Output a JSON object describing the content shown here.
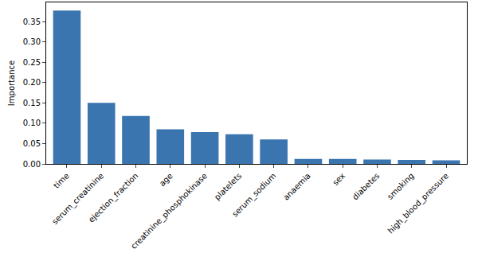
{
  "chart_data": {
    "type": "bar",
    "y_label": "Importance",
    "categories": [
      "time",
      "serum_creatinine",
      "ejection_fraction",
      "age",
      "creatinine_phosphokinase",
      "platelets",
      "serum_sodium",
      "anaemia",
      "sex",
      "diabetes",
      "smoking",
      "high_blood_pressure"
    ],
    "values": [
      0.377,
      0.15,
      0.118,
      0.085,
      0.078,
      0.073,
      0.06,
      0.012,
      0.012,
      0.011,
      0.01,
      0.009
    ],
    "color": "#3a75b0",
    "ylim": [
      0,
      0.397
    ],
    "yticks": [
      {
        "value": 0,
        "label": "0.00"
      },
      {
        "value": 0.05,
        "label": "0.05"
      },
      {
        "value": 0.1,
        "label": "0.10"
      },
      {
        "value": 0.15,
        "label": "0.15"
      },
      {
        "value": 0.2,
        "label": "0.20"
      },
      {
        "value": 0.25,
        "label": "0.25"
      },
      {
        "value": 0.3,
        "label": "0.30"
      },
      {
        "value": 0.35,
        "label": "0.35"
      }
    ],
    "grid": false
  }
}
